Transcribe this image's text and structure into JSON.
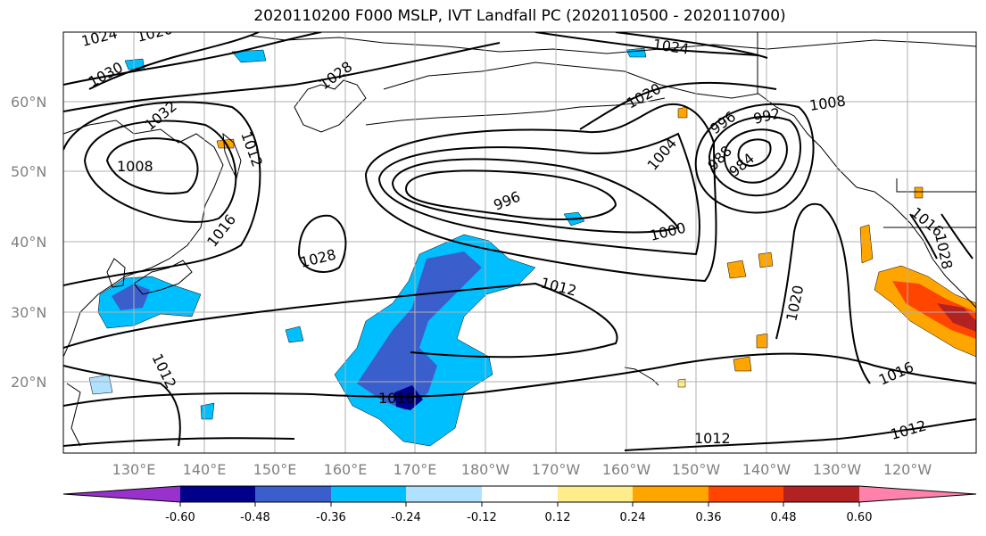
{
  "title": "2020110200 F000 MSLP, IVT Landfall PC (2020110500 - 2020110700)",
  "lat_labels": [
    "60°N",
    "50°N",
    "40°N",
    "30°N",
    "20°N"
  ],
  "lon_labels": [
    "130°E",
    "140°E",
    "150°E",
    "160°E",
    "170°E",
    "180°W",
    "170°W",
    "160°W",
    "150°W",
    "140°W",
    "130°W",
    "120°W"
  ],
  "isobar_labels": [
    "1024",
    "1020",
    "1030",
    "1032",
    "1028",
    "1008",
    "1012",
    "1016",
    "1028",
    "996",
    "1000",
    "1012",
    "1020",
    "1004",
    "996",
    "992",
    "988",
    "984",
    "1008",
    "1024",
    "1028",
    "1020",
    "1016",
    "1012",
    "1012",
    "1016",
    "1012",
    "1016"
  ],
  "colorbar": {
    "ticks": [
      "-0.60",
      "-0.48",
      "-0.36",
      "-0.24",
      "-0.12",
      "0.12",
      "0.24",
      "0.36",
      "0.48",
      "0.60"
    ],
    "colors": [
      "#9932CC",
      "#00008B",
      "#3A5FCD",
      "#00BFFF",
      "#B0E2FF",
      "#FFFFFF",
      "#FFEC8B",
      "#FFA500",
      "#FF4500",
      "#B22222",
      "#FF82AB"
    ]
  },
  "colors": {
    "neg_strong": "#00008B",
    "neg_mid": "#3A5FCD",
    "neg_light": "#00BFFF",
    "neg_pale": "#B0E2FF",
    "pos_pale": "#FFEC8B",
    "pos_mid": "#FFA500",
    "pos_strong": "#FF4500",
    "pos_deep": "#B22222",
    "grid": "#b0b0b0"
  }
}
